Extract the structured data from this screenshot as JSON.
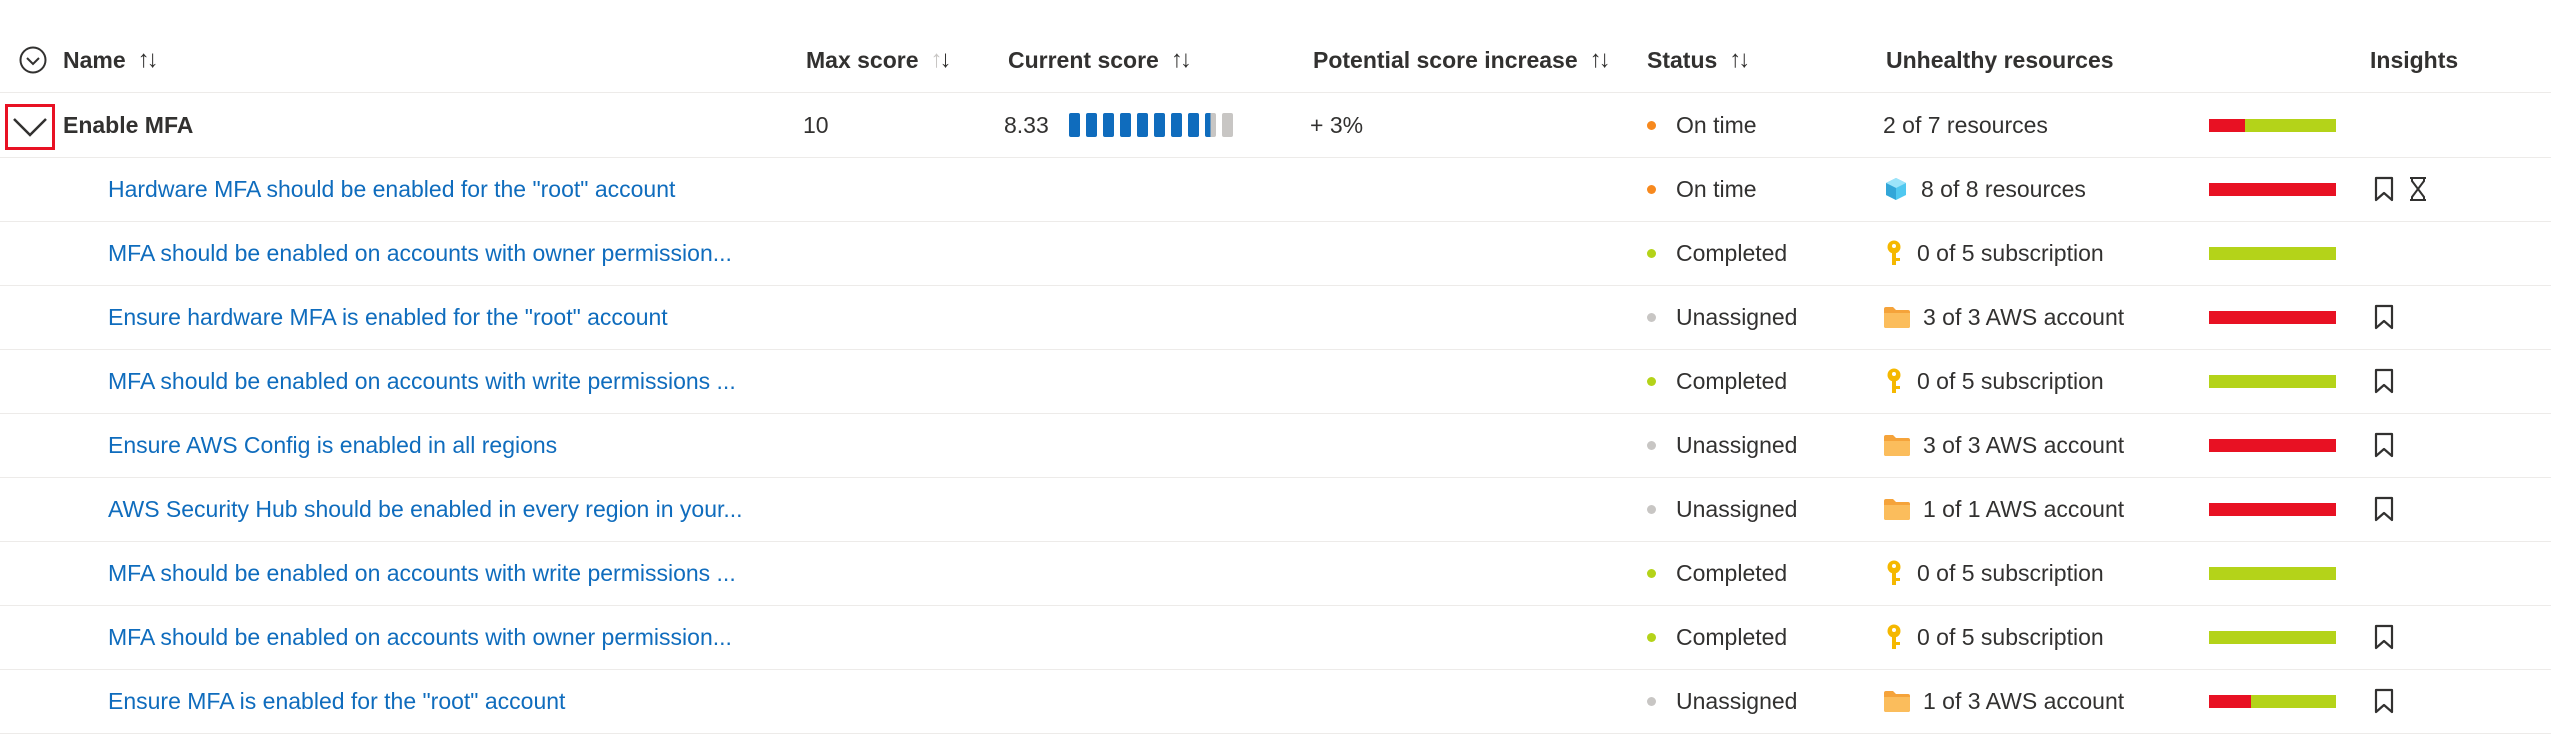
{
  "columns": {
    "name": "Name",
    "max_score": "Max score",
    "current_score": "Current score",
    "potential": "Potential score increase",
    "status": "Status",
    "unhealthy": "Unhealthy resources",
    "insights": "Insights"
  },
  "group": {
    "name": "Enable MFA",
    "max_score": "10",
    "current_score": "8.33",
    "current_score_fraction": 0.833,
    "potential": "+ 3%",
    "status": "On time",
    "status_color": "#f7891e",
    "unhealthy": "2 of 7 resources",
    "unhealthy_fraction": 0.286
  },
  "rows": [
    {
      "name": "Hardware MFA should be enabled for the \"root\" account",
      "status": "On time",
      "status_color": "#f7891e",
      "resource_icon": "cube-icon",
      "resources": "8 of 8 resources",
      "unhealthy_fraction": 1.0,
      "bookmark": true,
      "hourglass": true
    },
    {
      "name": "MFA should be enabled on accounts with owner permission...",
      "status": "Completed",
      "status_color": "#b4d319",
      "resource_icon": "key-icon",
      "resources": "0 of 5 subscription",
      "unhealthy_fraction": 0.0,
      "bookmark": false,
      "hourglass": false
    },
    {
      "name": "Ensure hardware MFA is enabled for the \"root\" account",
      "status": "Unassigned",
      "status_color": "#c8c6c4",
      "resource_icon": "folder-icon",
      "resources": "3 of 3 AWS account",
      "unhealthy_fraction": 1.0,
      "bookmark": true,
      "hourglass": false
    },
    {
      "name": "MFA should be enabled on accounts with write permissions ...",
      "status": "Completed",
      "status_color": "#b4d319",
      "resource_icon": "key-icon",
      "resources": "0 of 5 subscription",
      "unhealthy_fraction": 0.0,
      "bookmark": true,
      "hourglass": false
    },
    {
      "name": "Ensure AWS Config is enabled in all regions",
      "status": "Unassigned",
      "status_color": "#c8c6c4",
      "resource_icon": "folder-icon",
      "resources": "3 of 3 AWS account",
      "unhealthy_fraction": 1.0,
      "bookmark": true,
      "hourglass": false
    },
    {
      "name": "AWS Security Hub should be enabled in every region in your...",
      "status": "Unassigned",
      "status_color": "#c8c6c4",
      "resource_icon": "folder-icon",
      "resources": "1 of 1 AWS account",
      "unhealthy_fraction": 1.0,
      "bookmark": true,
      "hourglass": false
    },
    {
      "name": "MFA should be enabled on accounts with write permissions ...",
      "status": "Completed",
      "status_color": "#b4d319",
      "resource_icon": "key-icon",
      "resources": "0 of 5 subscription",
      "unhealthy_fraction": 0.0,
      "bookmark": false,
      "hourglass": false
    },
    {
      "name": "MFA should be enabled on accounts with owner permission...",
      "status": "Completed",
      "status_color": "#b4d319",
      "resource_icon": "key-icon",
      "resources": "0 of 5 subscription",
      "unhealthy_fraction": 0.0,
      "bookmark": true,
      "hourglass": false
    },
    {
      "name": "Ensure MFA is enabled for the \"root\" account",
      "status": "Unassigned",
      "status_color": "#c8c6c4",
      "resource_icon": "folder-icon",
      "resources": "1 of 3 AWS account",
      "unhealthy_fraction": 0.333,
      "bookmark": true,
      "hourglass": false
    }
  ]
}
